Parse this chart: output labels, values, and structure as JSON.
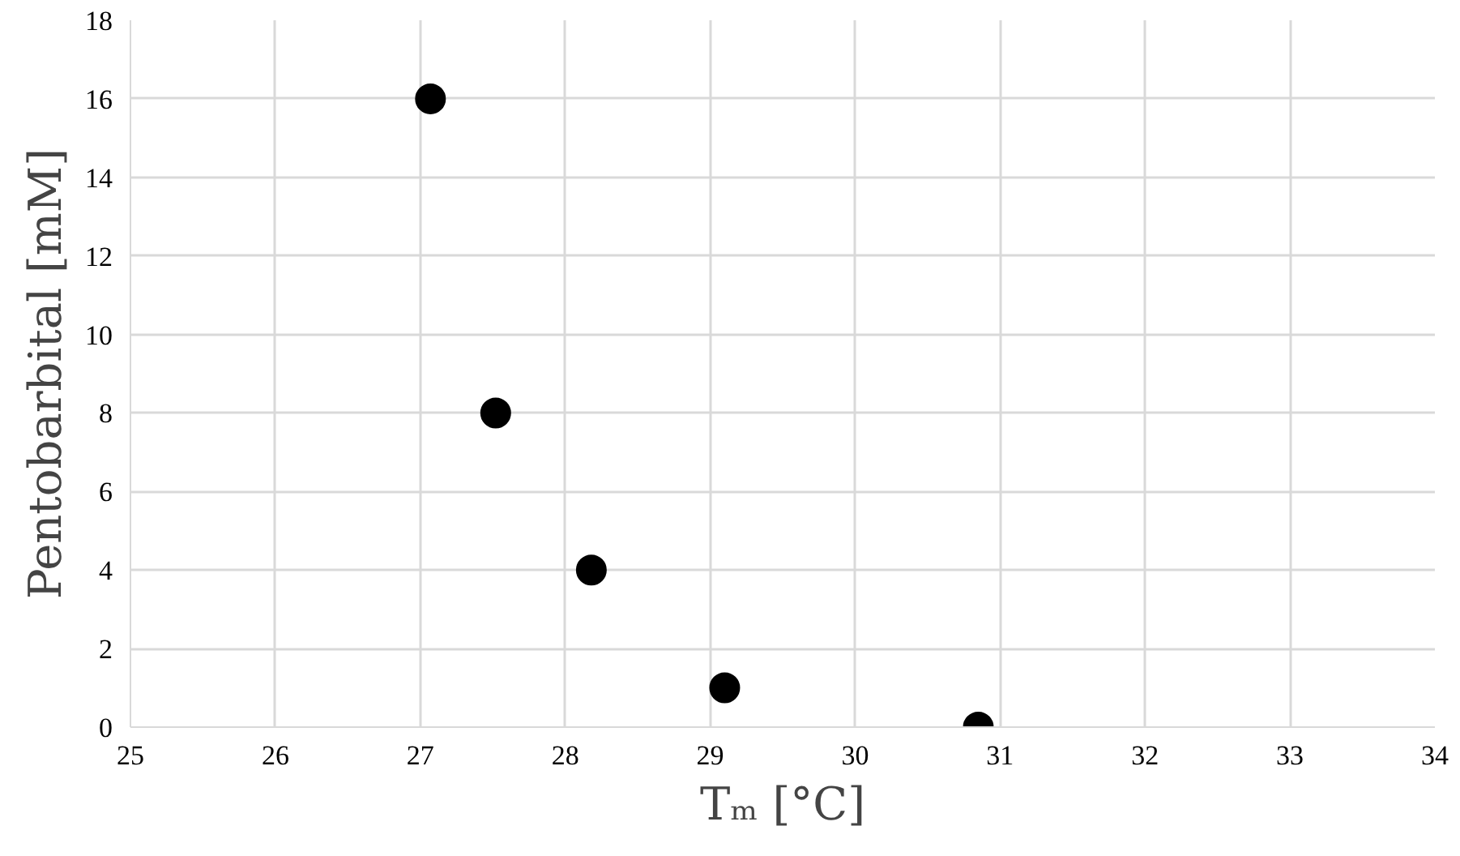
{
  "chart_data": {
    "type": "scatter",
    "xlabel": "Tₘ [°C]",
    "ylabel": "Pentobarbital [mM]",
    "x": [
      27.07,
      27.52,
      28.18,
      29.1,
      30.85
    ],
    "series": [
      {
        "color": "#000000",
        "values": [
          16,
          8,
          4,
          1,
          0
        ]
      }
    ],
    "xlim": [
      25,
      34
    ],
    "xticks": [
      25,
      26,
      27,
      28,
      29,
      30,
      31,
      32,
      33,
      34
    ],
    "ylim": [
      0,
      18
    ],
    "yticks": [
      0,
      2,
      4,
      6,
      8,
      10,
      12,
      14,
      16,
      18
    ],
    "grid": true,
    "marker": "circle"
  }
}
